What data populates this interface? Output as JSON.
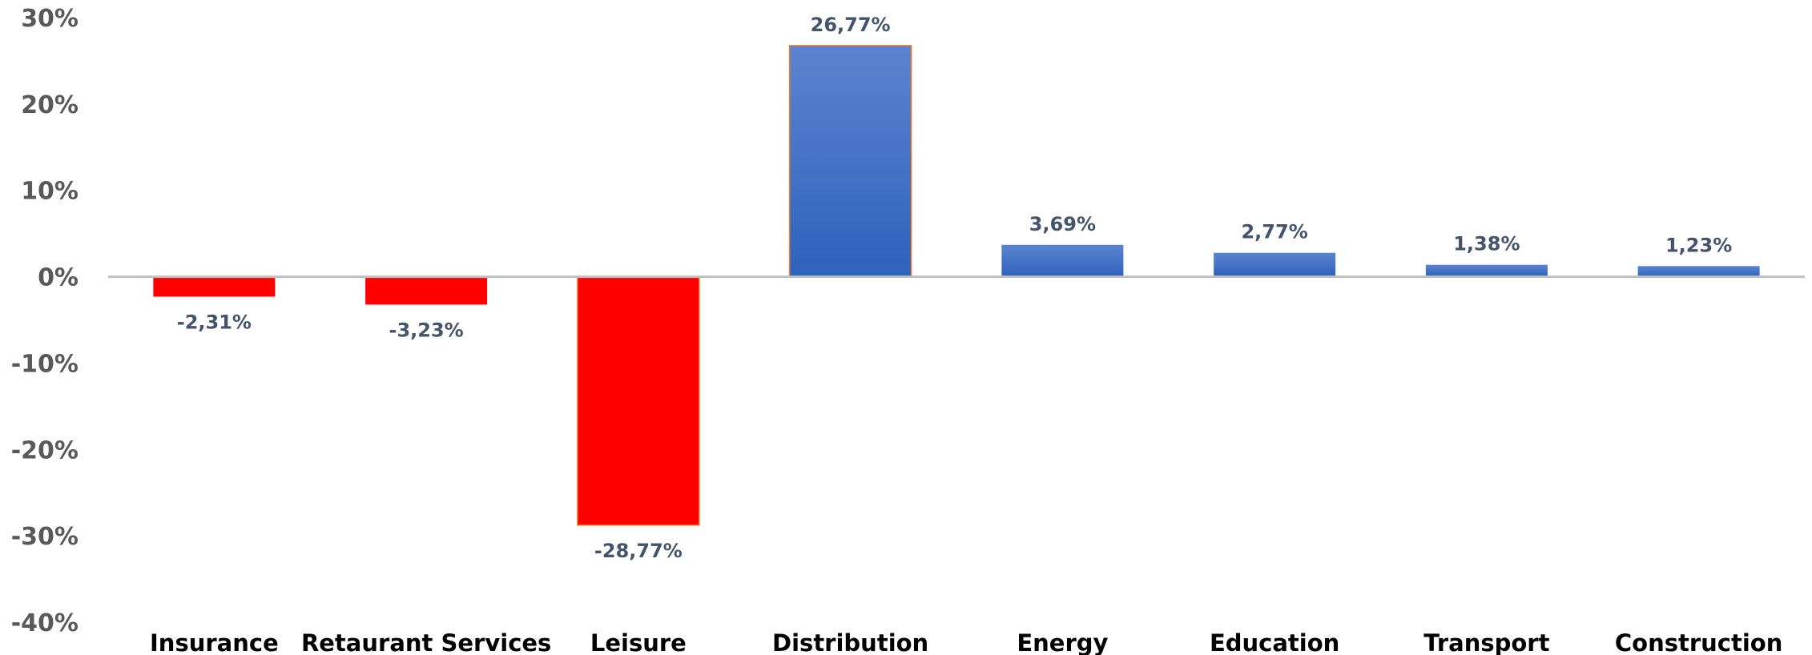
{
  "chart_data": {
    "type": "bar",
    "categories": [
      "Insurance",
      "Retaurant Services",
      "Leisure",
      "Distribution",
      "Energy",
      "Education",
      "Transport",
      "Construction"
    ],
    "values": [
      -2.31,
      -3.23,
      -28.77,
      26.77,
      3.69,
      2.77,
      1.38,
      1.23
    ],
    "data_labels": [
      "-2,31%",
      "-3,23%",
      "-28,77%",
      "26,77%",
      "3,69%",
      "2,77%",
      "1,38%",
      "1,23%"
    ],
    "ylim": [
      -40,
      30
    ],
    "yticks": [
      30,
      20,
      10,
      0,
      -10,
      -20,
      -30,
      -40
    ],
    "ytick_labels": [
      "30%",
      "20%",
      "10%",
      "0%",
      "-10%",
      "-20%",
      "-30%",
      "-40%"
    ],
    "title": "",
    "xlabel": "",
    "ylabel": "",
    "grid": false,
    "colors": {
      "positive_top": "#5b84cf",
      "positive_bottom": "#2f62bc",
      "negative": "#ff0000",
      "highlight_border": "#ed7d31",
      "axis": "#bfbfbf"
    }
  }
}
